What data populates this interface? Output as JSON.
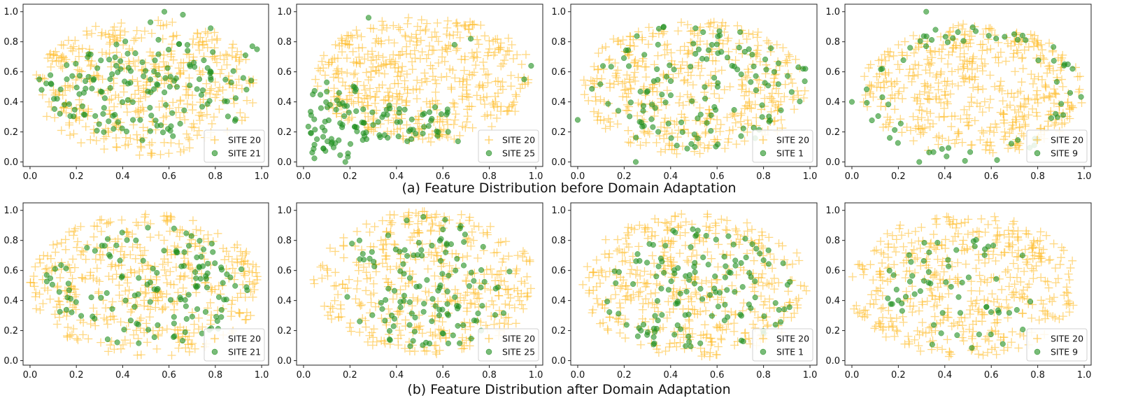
{
  "figure": {
    "caption_top": "(a) Feature Distribution before Domain Adaptation",
    "caption_bottom": "(b) Feature Distribution after Domain Adaptation",
    "colors": {
      "source": "#ffb81c",
      "target": "#1f8f1f"
    }
  },
  "chart_data": [
    {
      "type": "scatter",
      "row": "before",
      "xlim": [
        -0.03,
        1.03
      ],
      "ylim": [
        -0.03,
        1.05
      ],
      "xticks": [
        "0.0",
        "0.2",
        "0.4",
        "0.6",
        "0.8",
        "1.0"
      ],
      "yticks": [
        "0.0",
        "0.2",
        "0.4",
        "0.6",
        "0.8",
        "1.0"
      ],
      "legend_position": "lower right",
      "series": [
        {
          "name": "SITE 20",
          "marker": "plus",
          "color": "#ffb81c",
          "count": 430,
          "distribution": "ellipse",
          "center": [
            0.5,
            0.5
          ],
          "spread": [
            0.48,
            0.46
          ],
          "seed": 11
        },
        {
          "name": "SITE 21",
          "marker": "circle",
          "color": "#1f8f1f",
          "count": 150,
          "distribution": "ellipse",
          "center": [
            0.52,
            0.48
          ],
          "spread": [
            0.46,
            0.34
          ],
          "seed": 12,
          "points": [
            [
              0.58,
              1.0
            ],
            [
              0.66,
              0.98
            ],
            [
              0.78,
              0.89
            ],
            [
              0.52,
              0.93
            ],
            [
              0.98,
              0.75
            ],
            [
              0.96,
              0.77
            ],
            [
              0.93,
              0.71
            ],
            [
              0.04,
              0.55
            ],
            [
              0.05,
              0.48
            ]
          ]
        }
      ]
    },
    {
      "type": "scatter",
      "row": "before",
      "xlim": [
        -0.03,
        1.03
      ],
      "ylim": [
        -0.03,
        1.05
      ],
      "xticks": [
        "0.0",
        "0.2",
        "0.4",
        "0.6",
        "0.8",
        "1.0"
      ],
      "yticks": [
        "0.0",
        "0.2",
        "0.4",
        "0.6",
        "0.8",
        "1.0"
      ],
      "legend_position": "lower right",
      "series": [
        {
          "name": "SITE 20",
          "marker": "plus",
          "color": "#ffb81c",
          "count": 470,
          "distribution": "ellipse",
          "center": [
            0.52,
            0.55
          ],
          "spread": [
            0.48,
            0.42
          ],
          "seed": 21
        },
        {
          "name": "SITE 25",
          "marker": "circle",
          "color": "#1f8f1f",
          "count": 110,
          "distribution": "band",
          "center": [
            0.3,
            0.27
          ],
          "spread": [
            0.3,
            0.18
          ],
          "seed": 22,
          "points": [
            [
              0.28,
              0.96
            ],
            [
              0.1,
              0.53
            ],
            [
              0.04,
              0.45
            ],
            [
              0.18,
              0.0
            ],
            [
              0.65,
              0.78
            ],
            [
              0.72,
              0.82
            ],
            [
              0.98,
              0.64
            ],
            [
              0.95,
              0.55
            ],
            [
              0.62,
              0.35
            ],
            [
              0.62,
              0.33
            ]
          ]
        }
      ]
    },
    {
      "type": "scatter",
      "row": "before",
      "xlim": [
        -0.03,
        1.03
      ],
      "ylim": [
        -0.03,
        1.05
      ],
      "xticks": [
        "0.0",
        "0.2",
        "0.4",
        "0.6",
        "0.8",
        "1.0"
      ],
      "yticks": [
        "0.0",
        "0.2",
        "0.4",
        "0.6",
        "0.8",
        "1.0"
      ],
      "legend_position": "lower right",
      "series": [
        {
          "name": "SITE 20",
          "marker": "plus",
          "color": "#ffb81c",
          "count": 430,
          "distribution": "ellipse",
          "center": [
            0.5,
            0.5
          ],
          "spread": [
            0.48,
            0.46
          ],
          "seed": 31
        },
        {
          "name": "SITE 1",
          "marker": "circle",
          "color": "#1f8f1f",
          "count": 120,
          "distribution": "ellipse",
          "center": [
            0.52,
            0.5
          ],
          "spread": [
            0.46,
            0.42
          ],
          "seed": 32,
          "points": [
            [
              0.97,
              0.62
            ],
            [
              0.98,
              0.62
            ],
            [
              0.95,
              0.63
            ],
            [
              0.25,
              0.0
            ],
            [
              0.0,
              0.28
            ],
            [
              0.37,
              0.9
            ],
            [
              0.61,
              0.87
            ]
          ]
        }
      ]
    },
    {
      "type": "scatter",
      "row": "before",
      "xlim": [
        -0.03,
        1.03
      ],
      "ylim": [
        -0.03,
        1.05
      ],
      "xticks": [
        "0.0",
        "0.2",
        "0.4",
        "0.6",
        "0.8",
        "1.0"
      ],
      "yticks": [
        "0.0",
        "0.2",
        "0.4",
        "0.6",
        "0.8",
        "1.0"
      ],
      "legend_position": "lower right",
      "series": [
        {
          "name": "SITE 20",
          "marker": "plus",
          "color": "#ffb81c",
          "count": 470,
          "distribution": "ellipse",
          "center": [
            0.52,
            0.48
          ],
          "spread": [
            0.48,
            0.44
          ],
          "seed": 41
        },
        {
          "name": "SITE 9",
          "marker": "circle",
          "color": "#1f8f1f",
          "count": 60,
          "distribution": "ring",
          "center": [
            0.52,
            0.45
          ],
          "spread": [
            0.47,
            0.45
          ],
          "seed": 42,
          "points": [
            [
              0.0,
              0.4
            ],
            [
              0.32,
              1.0
            ],
            [
              0.36,
              0.88
            ],
            [
              0.29,
              0.0
            ],
            [
              0.93,
              0.65
            ],
            [
              0.95,
              0.62
            ]
          ]
        }
      ]
    },
    {
      "type": "scatter",
      "row": "after",
      "xlim": [
        -0.03,
        1.03
      ],
      "ylim": [
        -0.03,
        1.05
      ],
      "xticks": [
        "0.0",
        "0.2",
        "0.4",
        "0.6",
        "0.8",
        "1.0"
      ],
      "yticks": [
        "0.0",
        "0.2",
        "0.4",
        "0.6",
        "0.8",
        "1.0"
      ],
      "legend_position": "lower right",
      "series": [
        {
          "name": "SITE 20",
          "marker": "plus",
          "color": "#ffb81c",
          "count": 440,
          "distribution": "ellipse",
          "center": [
            0.5,
            0.5
          ],
          "spread": [
            0.5,
            0.48
          ],
          "seed": 51
        },
        {
          "name": "SITE 21",
          "marker": "circle",
          "color": "#1f8f1f",
          "count": 130,
          "distribution": "ellipse",
          "center": [
            0.5,
            0.48
          ],
          "spread": [
            0.44,
            0.42
          ],
          "seed": 52
        }
      ]
    },
    {
      "type": "scatter",
      "row": "after",
      "xlim": [
        -0.03,
        1.03
      ],
      "ylim": [
        -0.03,
        1.05
      ],
      "xticks": [
        "0.0",
        "0.2",
        "0.4",
        "0.6",
        "0.8",
        "1.0"
      ],
      "yticks": [
        "0.0",
        "0.2",
        "0.4",
        "0.6",
        "0.8",
        "1.0"
      ],
      "legend_position": "lower right",
      "series": [
        {
          "name": "SITE 20",
          "marker": "plus",
          "color": "#ffb81c",
          "count": 420,
          "distribution": "ellipse",
          "center": [
            0.52,
            0.52
          ],
          "spread": [
            0.48,
            0.48
          ],
          "seed": 61
        },
        {
          "name": "SITE 25",
          "marker": "circle",
          "color": "#1f8f1f",
          "count": 120,
          "distribution": "ellipse",
          "center": [
            0.52,
            0.52
          ],
          "spread": [
            0.4,
            0.44
          ],
          "seed": 62
        }
      ]
    },
    {
      "type": "scatter",
      "row": "after",
      "xlim": [
        -0.03,
        1.03
      ],
      "ylim": [
        -0.03,
        1.05
      ],
      "xticks": [
        "0.0",
        "0.2",
        "0.4",
        "0.6",
        "0.8",
        "1.0"
      ],
      "yticks": [
        "0.0",
        "0.2",
        "0.4",
        "0.6",
        "0.8",
        "1.0"
      ],
      "legend_position": "lower right",
      "series": [
        {
          "name": "SITE 20",
          "marker": "plus",
          "color": "#ffb81c",
          "count": 430,
          "distribution": "ellipse",
          "center": [
            0.5,
            0.5
          ],
          "spread": [
            0.5,
            0.48
          ],
          "seed": 71
        },
        {
          "name": "SITE 1",
          "marker": "circle",
          "color": "#1f8f1f",
          "count": 130,
          "distribution": "ellipse",
          "center": [
            0.52,
            0.48
          ],
          "spread": [
            0.42,
            0.42
          ],
          "seed": 72
        }
      ]
    },
    {
      "type": "scatter",
      "row": "after",
      "xlim": [
        -0.03,
        1.03
      ],
      "ylim": [
        -0.03,
        1.05
      ],
      "xticks": [
        "0.0",
        "0.2",
        "0.4",
        "0.6",
        "0.8",
        "1.0"
      ],
      "yticks": [
        "0.0",
        "0.2",
        "0.4",
        "0.6",
        "0.8",
        "1.0"
      ],
      "legend_position": "lower right",
      "series": [
        {
          "name": "SITE 20",
          "marker": "plus",
          "color": "#ffb81c",
          "count": 460,
          "distribution": "ellipse",
          "center": [
            0.48,
            0.5
          ],
          "spread": [
            0.5,
            0.48
          ],
          "seed": 81
        },
        {
          "name": "SITE 9",
          "marker": "circle",
          "color": "#1f8f1f",
          "count": 60,
          "distribution": "ellipse",
          "center": [
            0.5,
            0.45
          ],
          "spread": [
            0.38,
            0.4
          ],
          "seed": 82
        }
      ]
    }
  ]
}
